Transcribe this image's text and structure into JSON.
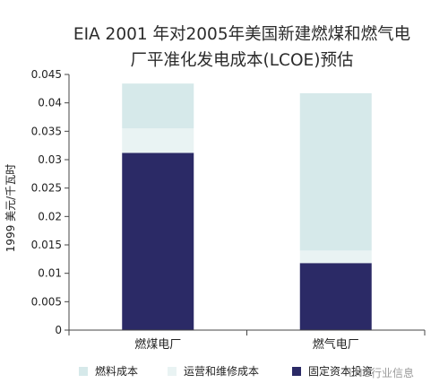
{
  "chart_data": {
    "type": "bar",
    "stacked": true,
    "title_lines": [
      "EIA 2001 年对2005年美国新建燃煤和燃气电",
      "厂平准化发电成本(LCOE)预估"
    ],
    "xlabel": "",
    "ylabel": "1999 美元/千瓦时",
    "ylim": [
      0,
      0.045
    ],
    "yticks": [
      "0",
      "0.005",
      "0.01",
      "0.015",
      "0.02",
      "0.025",
      "0.03",
      "0.035",
      "0.04",
      "0.045"
    ],
    "grid": false,
    "categories": [
      "燃煤电厂",
      "燃气电厂"
    ],
    "series": [
      {
        "name": "固定资本投资",
        "color": "#2b2a66",
        "values": [
          0.0312,
          0.0118
        ]
      },
      {
        "name": "运营和维修成本",
        "color": "#e9f3f3",
        "values": [
          0.0043,
          0.0022
        ]
      },
      {
        "name": "燃料成本",
        "color": "#d6e9ea",
        "values": [
          0.0079,
          0.0277
        ]
      }
    ],
    "legend_order": [
      "燃料成本",
      "运营和维修成本",
      "固定资本投资"
    ],
    "legend_position": "bottom"
  },
  "watermark": "LNG行业信息"
}
